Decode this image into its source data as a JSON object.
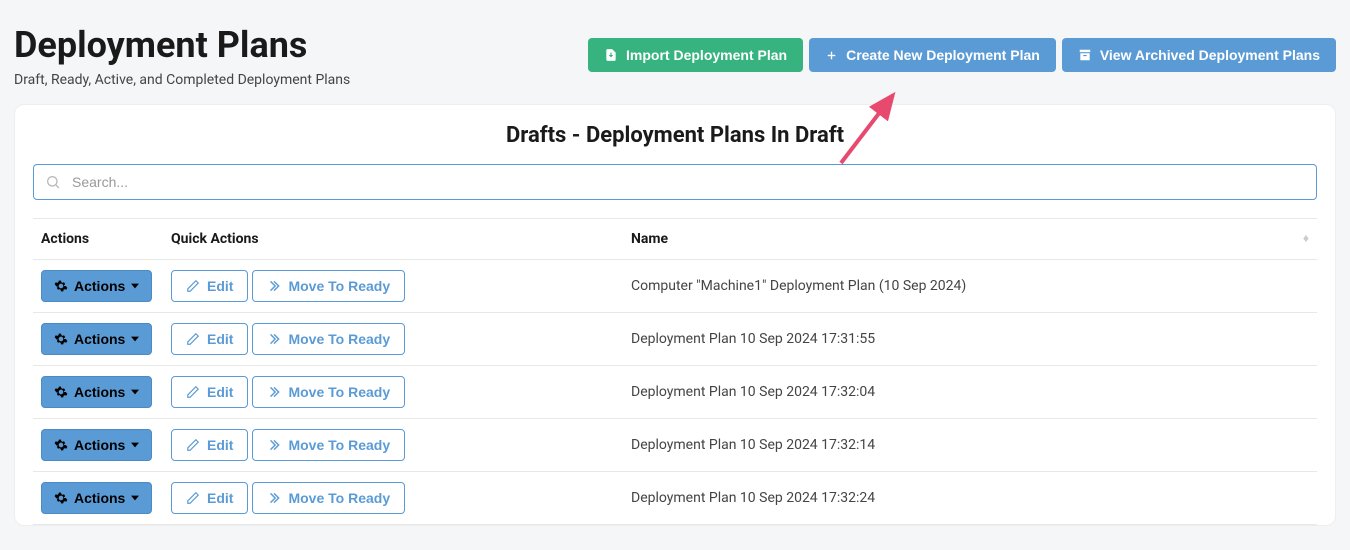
{
  "header": {
    "title": "Deployment Plans",
    "subtitle": "Draft, Ready, Active, and Completed Deployment Plans",
    "import_btn": "Import Deployment Plan",
    "create_btn": "Create New Deployment Plan",
    "archived_btn": "View Archived Deployment Plans"
  },
  "card": {
    "title": "Drafts - Deployment Plans In Draft"
  },
  "search": {
    "placeholder": "Search..."
  },
  "table": {
    "columns": [
      "Actions",
      "Quick Actions",
      "Name"
    ],
    "actions_label": "Actions",
    "edit_label": "Edit",
    "move_label": "Move To Ready",
    "rows": [
      {
        "name": "Computer \"Machine1\" Deployment Plan (10 Sep 2024)"
      },
      {
        "name": "Deployment Plan 10 Sep 2024 17:31:55"
      },
      {
        "name": "Deployment Plan 10 Sep 2024 17:32:04"
      },
      {
        "name": "Deployment Plan 10 Sep 2024 17:32:14"
      },
      {
        "name": "Deployment Plan 10 Sep 2024 17:32:24"
      }
    ]
  },
  "colors": {
    "green": "#36b37e",
    "blue": "#5b9bd5",
    "page_bg": "#f5f6f8",
    "arrow": "#e84a6f"
  }
}
